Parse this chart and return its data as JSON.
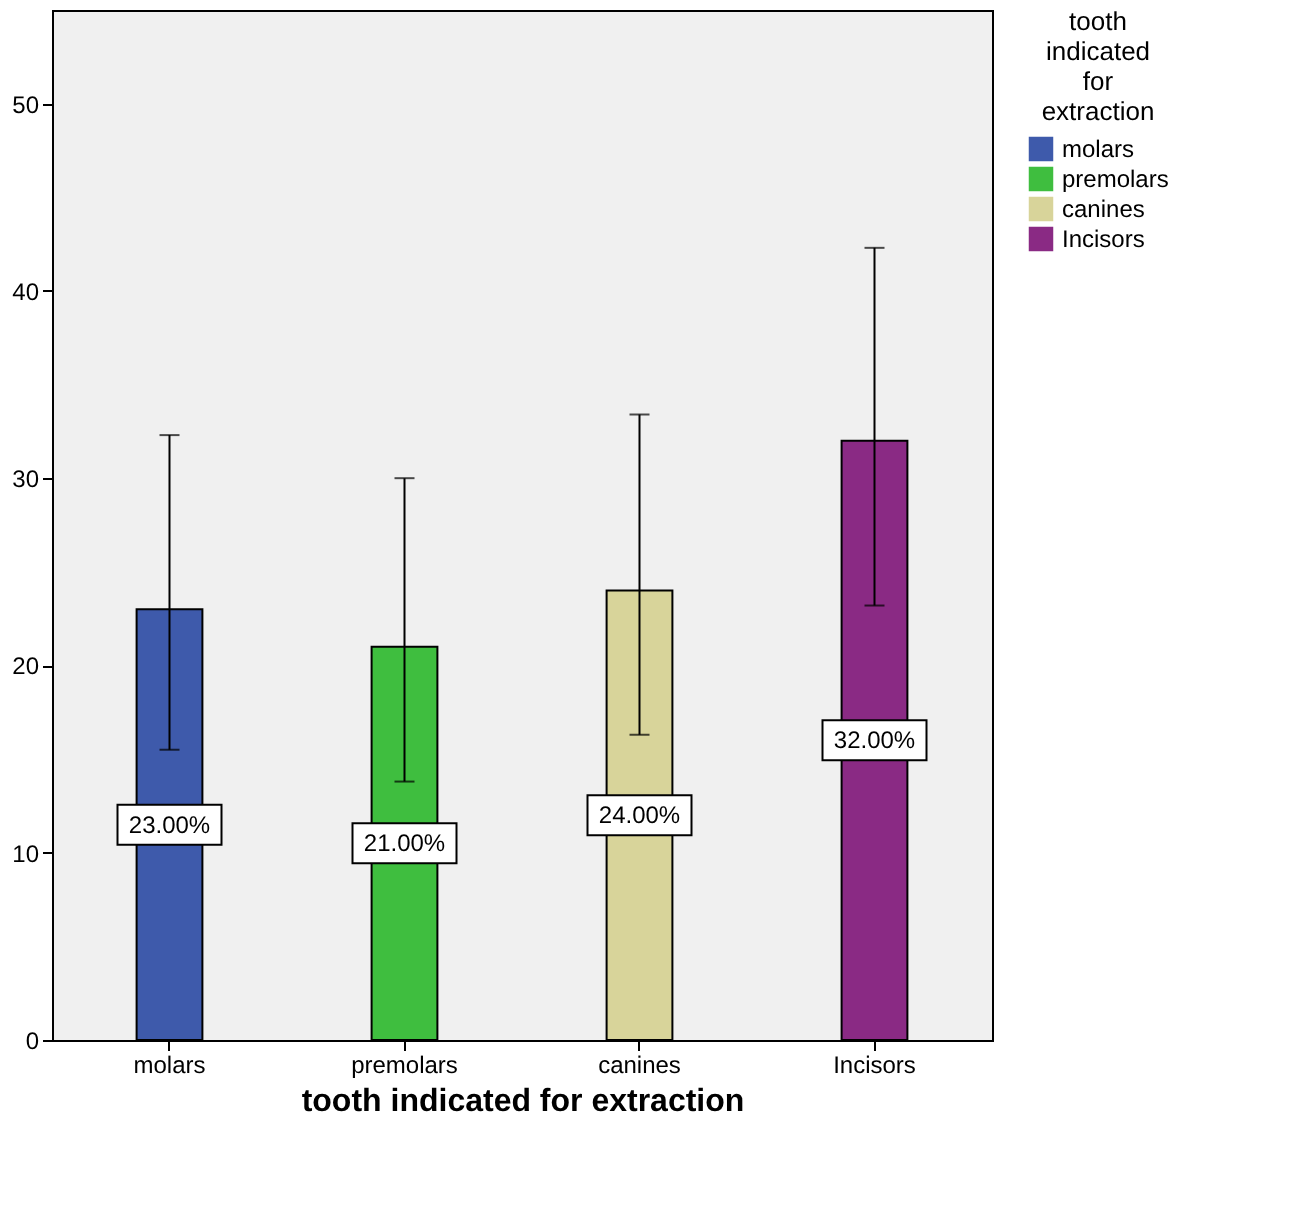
{
  "chart_data": {
    "type": "bar",
    "xlabel": "tooth indicated for extraction",
    "legend_title": "tooth indicated for extraction",
    "categories": [
      "molars",
      "premolars",
      "canines",
      "Incisors"
    ],
    "series": [
      {
        "name": "molars",
        "color": "#3e5aab",
        "values": [
          23,
          null,
          null,
          null
        ],
        "errors": [
          [
            15.5,
            32.3
          ],
          null,
          null,
          null
        ],
        "value_labels": [
          "23.00%",
          null,
          null,
          null
        ]
      },
      {
        "name": "premolars",
        "color": "#3fbe3f",
        "values": [
          null,
          21,
          null,
          null
        ],
        "errors": [
          null,
          [
            13.8,
            30.0
          ],
          null,
          null
        ],
        "value_labels": [
          null,
          "21.00%",
          null,
          null
        ]
      },
      {
        "name": "canines",
        "color": "#d8d49a",
        "values": [
          null,
          null,
          24,
          null
        ],
        "errors": [
          null,
          null,
          [
            16.3,
            33.4
          ],
          null
        ],
        "value_labels": [
          null,
          null,
          "24.00%",
          null
        ]
      },
      {
        "name": "Incisors",
        "color": "#8a2a84",
        "values": [
          null,
          null,
          null,
          32
        ],
        "errors": [
          null,
          null,
          null,
          [
            23.2,
            42.3
          ]
        ],
        "value_labels": [
          null,
          null,
          null,
          "32.00%"
        ]
      }
    ],
    "ylim": [
      0,
      55
    ],
    "yticks": [
      0,
      10,
      20,
      30,
      40,
      50
    ],
    "legend": "top right"
  }
}
